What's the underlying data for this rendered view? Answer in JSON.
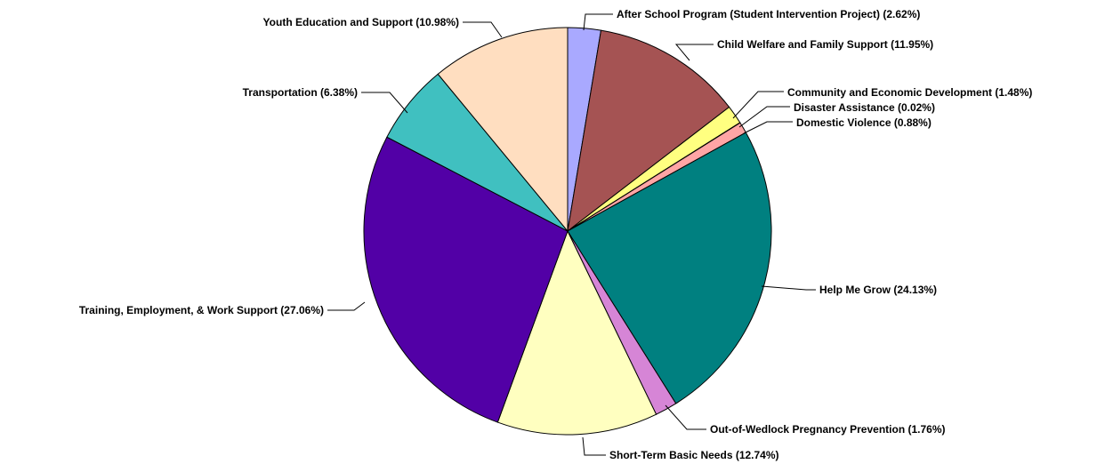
{
  "chart_data": {
    "type": "pie",
    "title": "",
    "slices": [
      {
        "label": "After School Program (Student Intervention Project) (2.62%)",
        "value": 2.62,
        "color": "#A9A9FF"
      },
      {
        "label": "Child Welfare and Family Support (11.95%)",
        "value": 11.95,
        "color": "#A55353"
      },
      {
        "label": "Community and Economic Development (1.48%)",
        "value": 1.48,
        "color": "#FFFF80"
      },
      {
        "label": "Disaster Assistance (0.02%)",
        "value": 0.02,
        "color": "#FFFFFF"
      },
      {
        "label": "Domestic Violence (0.88%)",
        "value": 0.88,
        "color": "#FFA5A5"
      },
      {
        "label": "Help Me Grow (24.13%)",
        "value": 24.13,
        "color": "#008080"
      },
      {
        "label": "Out-of-Wedlock Pregnancy Prevention   (1.76%)",
        "value": 1.76,
        "color": "#D685D6"
      },
      {
        "label": "Short-Term Basic Needs (12.74%)",
        "value": 12.74,
        "color": "#FFFFC0"
      },
      {
        "label": "Training, Employment, & Work Support (27.06%)",
        "value": 27.06,
        "color": "#5200A6"
      },
      {
        "label": "Transportation  (6.38%)",
        "value": 6.38,
        "color": "#40C0C0"
      },
      {
        "label": "Youth Education and Support  (10.98%)",
        "value": 10.98,
        "color": "#FFDEC0"
      }
    ],
    "start_angle": "12 o'clock",
    "direction": "clockwise",
    "legend": "none"
  }
}
